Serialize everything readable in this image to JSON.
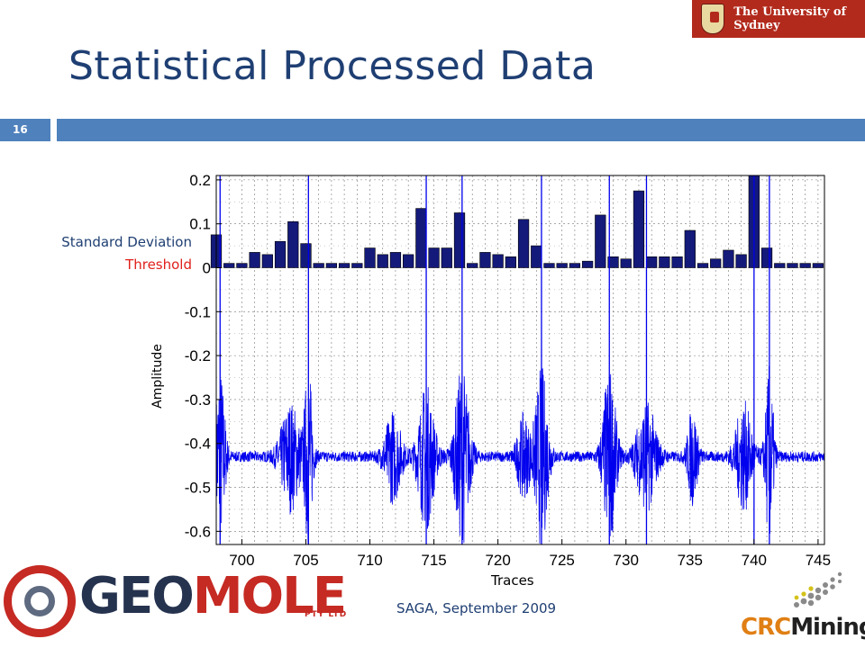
{
  "slide": {
    "title": "Statistical Processed Data",
    "number": "16",
    "footer": "SAGA, September 2009",
    "labels": {
      "standard_deviation": "Standard Deviation",
      "threshold": "Threshold"
    },
    "logos": {
      "university": "The University of Sydney",
      "geomole_main_a": "GEO",
      "geomole_main_b": "MOLE",
      "geomole_sub": "PTY LTD",
      "crc_a": "CRC",
      "crc_b": "Mining"
    }
  },
  "colors": {
    "title": "#1f3f73",
    "band": "#4f81bd",
    "bar_fill": "#141a7a",
    "signal": "#0000ee",
    "threshold_text": "#e0201b",
    "grid": "#555555"
  },
  "chart_data": {
    "type": "bar",
    "xlabel": "Traces",
    "ylabel": "Amplitude",
    "xlim": [
      698,
      745.5
    ],
    "ylim": [
      -0.63,
      0.21
    ],
    "xticks": [
      700,
      705,
      710,
      715,
      720,
      725,
      730,
      735,
      740,
      745
    ],
    "yticks": [
      0.2,
      0.1,
      0,
      -0.1,
      -0.2,
      -0.3,
      -0.4,
      -0.5,
      -0.6
    ],
    "ytick_labels": [
      "0.2",
      "0.1",
      "0",
      "-0.1",
      "-0.2",
      "-0.3",
      "-0.4",
      "-0.5",
      "-0.6"
    ],
    "grid": true,
    "series": [
      {
        "kind": "bar",
        "x": [
          698,
          699,
          700,
          701,
          702,
          703,
          704,
          705,
          706,
          707,
          708,
          709,
          710,
          711,
          712,
          713,
          714,
          715,
          716,
          717,
          718,
          719,
          720,
          721,
          722,
          723,
          724,
          725,
          726,
          727,
          728,
          729,
          730,
          731,
          732,
          733,
          734,
          735,
          736,
          737,
          738,
          739,
          740,
          741,
          742,
          743,
          744,
          745
        ],
        "values": [
          0.075,
          0.01,
          0.01,
          0.035,
          0.03,
          0.06,
          0.105,
          0.055,
          0.01,
          0.01,
          0.01,
          0.01,
          0.045,
          0.03,
          0.035,
          0.03,
          0.135,
          0.045,
          0.045,
          0.125,
          0.01,
          0.035,
          0.03,
          0.025,
          0.11,
          0.05,
          0.01,
          0.01,
          0.01,
          0.015,
          0.12,
          0.025,
          0.02,
          0.175,
          0.025,
          0.025,
          0.025,
          0.085,
          0.01,
          0.02,
          0.04,
          0.03,
          0.21,
          0.045,
          0.01,
          0.01,
          0.01,
          0.01
        ]
      },
      {
        "kind": "signal",
        "baseline": -0.43,
        "bursts": [
          {
            "center": 698.3,
            "width": 0.6,
            "amplitude": 0.2
          },
          {
            "center": 703.8,
            "width": 1.2,
            "amplitude": 0.12
          },
          {
            "center": 705.2,
            "width": 0.5,
            "amplitude": 0.2
          },
          {
            "center": 711.8,
            "width": 1.0,
            "amplitude": 0.1
          },
          {
            "center": 714.4,
            "width": 1.0,
            "amplitude": 0.16
          },
          {
            "center": 717.2,
            "width": 0.9,
            "amplitude": 0.2
          },
          {
            "center": 722.0,
            "width": 0.8,
            "amplitude": 0.09
          },
          {
            "center": 723.4,
            "width": 0.8,
            "amplitude": 0.2
          },
          {
            "center": 728.7,
            "width": 0.8,
            "amplitude": 0.2
          },
          {
            "center": 731.6,
            "width": 1.2,
            "amplitude": 0.12
          },
          {
            "center": 735.2,
            "width": 0.6,
            "amplitude": 0.11
          },
          {
            "center": 739.2,
            "width": 1.0,
            "amplitude": 0.12
          },
          {
            "center": 741.2,
            "width": 0.5,
            "amplitude": 0.2
          }
        ],
        "spikes": [
          698.3,
          705.2,
          714.4,
          717.2,
          723.4,
          728.7,
          731.6,
          740.0,
          741.2
        ]
      }
    ]
  }
}
